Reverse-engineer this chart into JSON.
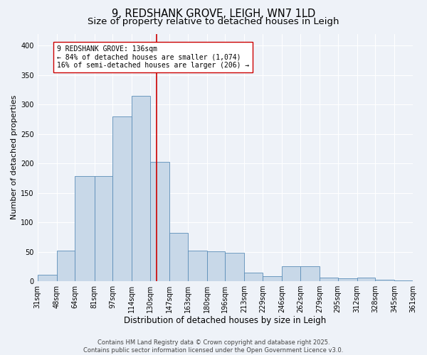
{
  "title": "9, REDSHANK GROVE, LEIGH, WN7 1LD",
  "subtitle": "Size of property relative to detached houses in Leigh",
  "xlabel": "Distribution of detached houses by size in Leigh",
  "ylabel": "Number of detached properties",
  "bin_edges": [
    31,
    48,
    64,
    81,
    97,
    114,
    130,
    147,
    163,
    180,
    196,
    213,
    229,
    246,
    262,
    279,
    295,
    312,
    328,
    345,
    361
  ],
  "bar_heights": [
    11,
    52,
    178,
    178,
    280,
    315,
    203,
    82,
    52,
    51,
    48,
    15,
    8,
    25,
    25,
    6,
    5,
    6,
    2,
    1
  ],
  "bar_color": "#c8d8e8",
  "bar_edge_color": "#5b8db8",
  "property_size": 136,
  "vline_color": "#cc0000",
  "annotation_line1": "9 REDSHANK GROVE: 136sqm",
  "annotation_line2": "← 84% of detached houses are smaller (1,074)",
  "annotation_line3": "16% of semi-detached houses are larger (206) →",
  "annotation_box_color": "#ffffff",
  "annotation_box_edge_color": "#cc0000",
  "background_color": "#eef2f8",
  "grid_color": "#ffffff",
  "ylim": [
    0,
    420
  ],
  "xlim": [
    31,
    361
  ],
  "yticks": [
    0,
    50,
    100,
    150,
    200,
    250,
    300,
    350,
    400
  ],
  "footer_text": "Contains HM Land Registry data © Crown copyright and database right 2025.\nContains public sector information licensed under the Open Government Licence v3.0.",
  "title_fontsize": 10.5,
  "subtitle_fontsize": 9.5,
  "xlabel_fontsize": 8.5,
  "ylabel_fontsize": 8.0,
  "tick_fontsize": 7.0,
  "annotation_fontsize": 7.0,
  "footer_fontsize": 6.0
}
